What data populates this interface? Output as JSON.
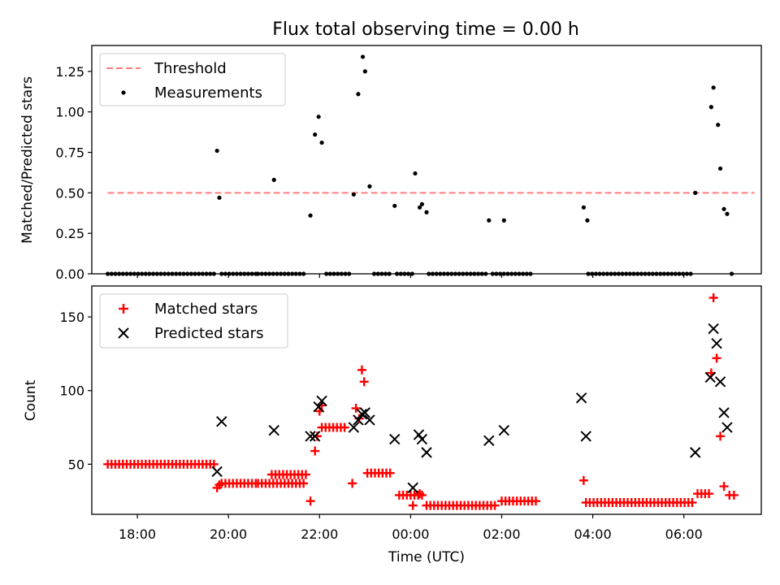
{
  "title": "Flux total observing time = 0.00 h",
  "colors": {
    "threshold": "#ff7f7f",
    "measurement": "#000000",
    "matched": "#ff0000",
    "predicted": "#000000"
  },
  "chart_data": [
    {
      "type": "scatter",
      "title": "Flux total observing time = 0.00 h",
      "xlabel": "",
      "ylabel": "Matched/Predicted stars",
      "xlim": [
        17.0,
        31.7
      ],
      "ylim": [
        0.0,
        1.41
      ],
      "yticks": [
        0.0,
        0.25,
        0.5,
        0.75,
        1.0,
        1.25
      ],
      "ytick_labels": [
        "0.00",
        "0.25",
        "0.50",
        "0.75",
        "1.00",
        "1.25"
      ],
      "legend": [
        "Threshold",
        "Measurements"
      ],
      "legend_position": "upper-left",
      "threshold": {
        "name": "Threshold",
        "value": 0.5,
        "x": [
          17.35,
          31.55
        ]
      },
      "measurements": [
        [
          19.75,
          0.76
        ],
        [
          19.8,
          0.47
        ],
        [
          21.0,
          0.58
        ],
        [
          21.8,
          0.36
        ],
        [
          21.9,
          0.86
        ],
        [
          21.98,
          0.97
        ],
        [
          22.05,
          0.81
        ],
        [
          22.75,
          0.49
        ],
        [
          22.85,
          1.11
        ],
        [
          22.95,
          1.34
        ],
        [
          23.0,
          1.25
        ],
        [
          23.1,
          0.54
        ],
        [
          23.65,
          0.42
        ],
        [
          24.1,
          0.62
        ],
        [
          24.2,
          0.41
        ],
        [
          24.25,
          0.43
        ],
        [
          24.35,
          0.38
        ],
        [
          25.72,
          0.33
        ],
        [
          26.05,
          0.33
        ],
        [
          27.8,
          0.41
        ],
        [
          27.88,
          0.33
        ],
        [
          30.25,
          0.5
        ],
        [
          30.6,
          1.03
        ],
        [
          30.65,
          1.15
        ],
        [
          30.75,
          0.92
        ],
        [
          30.8,
          0.65
        ],
        [
          30.88,
          0.4
        ],
        [
          30.95,
          0.37
        ],
        [
          31.05,
          0.0
        ]
      ],
      "zero_ranges": [
        [
          17.35,
          19.7
        ],
        [
          19.85,
          20.6
        ],
        [
          20.65,
          21.7
        ],
        [
          22.15,
          22.7
        ],
        [
          23.2,
          23.6
        ],
        [
          23.7,
          24.05
        ],
        [
          24.4,
          25.65
        ],
        [
          25.8,
          26.7
        ],
        [
          27.9,
          30.2
        ]
      ]
    },
    {
      "type": "scatter",
      "xlabel": "Time (UTC)",
      "ylabel": "Count",
      "xlim": [
        17.0,
        31.7
      ],
      "ylim": [
        16.0,
        171.0
      ],
      "yticks": [
        50,
        100,
        150
      ],
      "ytick_labels": [
        "50",
        "100",
        "150"
      ],
      "xticks": [
        18,
        20,
        22,
        24,
        26,
        28,
        30
      ],
      "xtick_labels": [
        "18:00",
        "20:00",
        "22:00",
        "00:00",
        "02:00",
        "04:00",
        "06:00"
      ],
      "legend": [
        "Matched stars",
        "Predicted stars"
      ],
      "legend_position": "upper-left",
      "matched_runs": [
        {
          "from": 17.35,
          "to": 19.7,
          "value": 50
        },
        {
          "from": 19.85,
          "to": 20.6,
          "value": 37
        },
        {
          "from": 20.65,
          "to": 21.7,
          "value": 37
        },
        {
          "from": 20.95,
          "to": 21.75,
          "value": 43
        },
        {
          "from": 22.05,
          "to": 22.6,
          "value": 75
        },
        {
          "from": 23.05,
          "to": 23.55,
          "value": 44
        },
        {
          "from": 23.75,
          "to": 24.3,
          "value": 29
        },
        {
          "from": 24.35,
          "to": 25.9,
          "value": 22
        },
        {
          "from": 26.0,
          "to": 26.75,
          "value": 25
        },
        {
          "from": 27.85,
          "to": 30.2,
          "value": 24
        },
        {
          "from": 30.3,
          "to": 30.55,
          "value": 30
        }
      ],
      "matched_points": [
        [
          19.75,
          34
        ],
        [
          19.8,
          36
        ],
        [
          21.8,
          25
        ],
        [
          21.9,
          59
        ],
        [
          21.95,
          69
        ],
        [
          22.0,
          86
        ],
        [
          22.05,
          90
        ],
        [
          22.72,
          37
        ],
        [
          22.8,
          88
        ],
        [
          22.87,
          81
        ],
        [
          22.93,
          114
        ],
        [
          22.98,
          106
        ],
        [
          24.05,
          22
        ],
        [
          24.2,
          30
        ],
        [
          27.8,
          39
        ],
        [
          30.6,
          112
        ],
        [
          30.65,
          163
        ],
        [
          30.72,
          122
        ],
        [
          30.8,
          69
        ],
        [
          30.88,
          35
        ],
        [
          31.0,
          29
        ],
        [
          31.1,
          29
        ]
      ],
      "predicted_points": [
        [
          19.75,
          45
        ],
        [
          19.85,
          79
        ],
        [
          21.0,
          73
        ],
        [
          21.8,
          69
        ],
        [
          21.9,
          69
        ],
        [
          21.98,
          89
        ],
        [
          22.05,
          93
        ],
        [
          22.75,
          75
        ],
        [
          22.85,
          80
        ],
        [
          22.93,
          84
        ],
        [
          23.0,
          85
        ],
        [
          23.1,
          80
        ],
        [
          23.65,
          67
        ],
        [
          24.05,
          34
        ],
        [
          24.18,
          70
        ],
        [
          24.25,
          67
        ],
        [
          24.35,
          58
        ],
        [
          25.72,
          66
        ],
        [
          26.05,
          73
        ],
        [
          27.75,
          95
        ],
        [
          27.85,
          69
        ],
        [
          30.25,
          58
        ],
        [
          30.58,
          109
        ],
        [
          30.65,
          142
        ],
        [
          30.72,
          132
        ],
        [
          30.8,
          106
        ],
        [
          30.88,
          85
        ],
        [
          30.95,
          75
        ]
      ]
    }
  ]
}
